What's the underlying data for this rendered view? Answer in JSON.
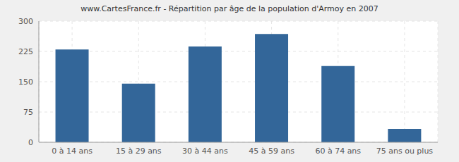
{
  "chart_data": {
    "type": "bar",
    "title": "www.CartesFrance.fr - Répartition par âge de la population d'Armoy en 2007",
    "categories": [
      "0 à 14 ans",
      "15 à 29 ans",
      "30 à 44 ans",
      "45 à 59 ans",
      "60 à 74 ans",
      "75 ans ou plus"
    ],
    "values": [
      230,
      145,
      237,
      268,
      189,
      33
    ],
    "color": "#336699",
    "ylim": [
      0,
      300
    ],
    "yticks": [
      0,
      75,
      150,
      225,
      300
    ],
    "grid": true
  }
}
